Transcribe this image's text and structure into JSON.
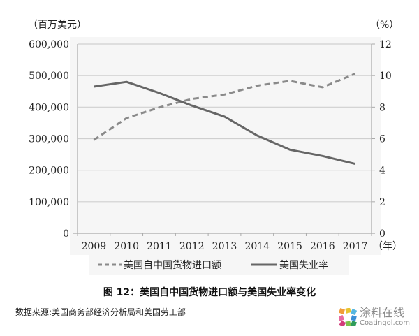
{
  "chart_data": {
    "type": "line",
    "title": "图 12：美国自中国货物进口额与美国失业率变化",
    "source": "数据来源:美国商务部经济分析局和美国劳工部",
    "x": [
      "2009",
      "2010",
      "2011",
      "2012",
      "2013",
      "2014",
      "2015",
      "2016",
      "2017"
    ],
    "xlabel": "（年）",
    "ylabel_left": "（百万美元）",
    "ylabel_right": "（%）",
    "ylim_left": [
      0,
      600000
    ],
    "ylim_right": [
      0,
      12
    ],
    "yticks_left": [
      "0",
      "100,000",
      "200,000",
      "300,000",
      "400,000",
      "500,000",
      "600,000"
    ],
    "yticks_right": [
      "0",
      "2",
      "4",
      "6",
      "8",
      "10",
      "12"
    ],
    "grid": true,
    "legend_position": "bottom",
    "series": [
      {
        "name": "美国自中国货物进口额",
        "axis": "left",
        "style": "dashed",
        "color": "#8a8a8a",
        "values": [
          296000,
          365000,
          399000,
          426000,
          440000,
          468000,
          483000,
          463000,
          506000
        ]
      },
      {
        "name": "美国失业率",
        "axis": "right",
        "style": "solid",
        "color": "#666666",
        "values": [
          9.3,
          9.6,
          8.9,
          8.1,
          7.4,
          6.2,
          5.3,
          4.9,
          4.4
        ]
      }
    ]
  },
  "watermark": {
    "cn": "涂料在线",
    "en": "Coatingol.com"
  }
}
